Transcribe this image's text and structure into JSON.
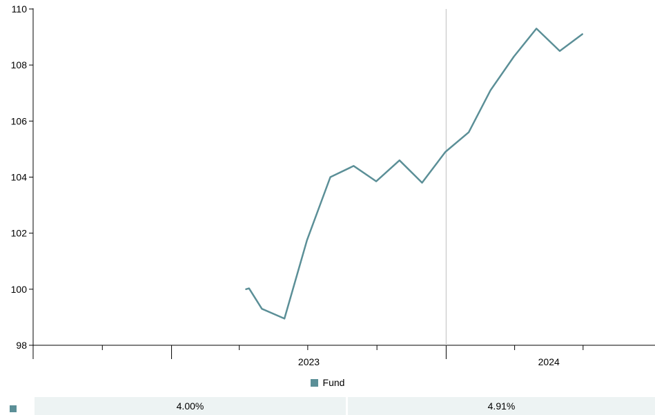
{
  "chart_data": {
    "type": "line",
    "x_axis": {
      "type": "date",
      "range": [
        "2022-07-01",
        "2024-09-30"
      ],
      "tick_labels": [
        {
          "label": "2023",
          "at": "2023-01-01"
        },
        {
          "label": "2024",
          "at": "2024-01-01"
        }
      ],
      "minor_ticks": "quarterly",
      "divider_at": "2024-01-01"
    },
    "y_axis": {
      "range": [
        98,
        110
      ],
      "ticks": [
        "98",
        "100",
        "102",
        "104",
        "106",
        "108",
        "110"
      ]
    },
    "grid": false,
    "legend_position": "bottom-center",
    "series": [
      {
        "name": "Fund",
        "color": "#5b8f97",
        "points": [
          {
            "date": "2023-04-10",
            "value": 100.0
          },
          {
            "date": "2023-04-14",
            "value": 100.03
          },
          {
            "date": "2023-05-01",
            "value": 99.3
          },
          {
            "date": "2023-05-31",
            "value": 98.95
          },
          {
            "date": "2023-06-30",
            "value": 101.75
          },
          {
            "date": "2023-07-31",
            "value": 104.0
          },
          {
            "date": "2023-08-31",
            "value": 104.4
          },
          {
            "date": "2023-09-30",
            "value": 103.85
          },
          {
            "date": "2023-10-31",
            "value": 104.6
          },
          {
            "date": "2023-11-30",
            "value": 103.8
          },
          {
            "date": "2023-12-31",
            "value": 104.9
          },
          {
            "date": "2024-01-31",
            "value": 105.6
          },
          {
            "date": "2024-02-29",
            "value": 107.1
          },
          {
            "date": "2024-03-31",
            "value": 108.3
          },
          {
            "date": "2024-04-30",
            "value": 109.3
          },
          {
            "date": "2024-05-31",
            "value": 108.5
          },
          {
            "date": "2024-06-30",
            "value": 109.1
          }
        ]
      }
    ]
  },
  "legend": {
    "label": "Fund",
    "color": "#5b8f97"
  },
  "returns_row": {
    "swatch_color": "#5b8f97",
    "cell_color": "#edf3f3",
    "values": [
      "4.00%",
      "4.91%"
    ]
  }
}
